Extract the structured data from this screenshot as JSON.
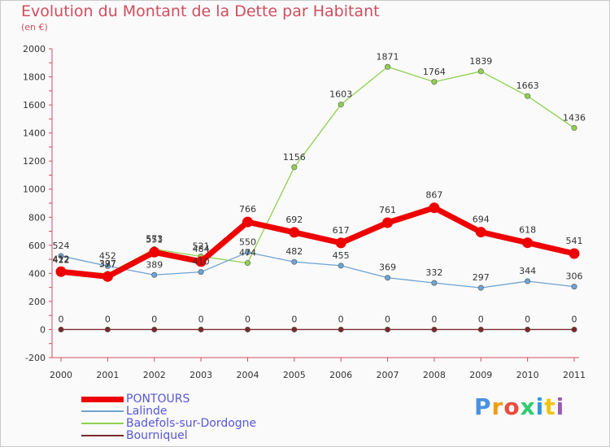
{
  "title": "Evolution du Montant de la Dette par Habitant",
  "subtitle": "(en €)",
  "brand": {
    "text": "Proxiti",
    "colors": [
      "#4a90e2",
      "#f39c12",
      "#e74c3c",
      "#2ecc71",
      "#3498db",
      "#f1c40f",
      "#9b59b6"
    ]
  },
  "chart_data": {
    "type": "line",
    "x": [
      "2000",
      "2001",
      "2002",
      "2003",
      "2004",
      "2005",
      "2006",
      "2007",
      "2008",
      "2009",
      "2010",
      "2011"
    ],
    "ylim": [
      -200,
      2000
    ],
    "yticks": [
      "-200",
      "0",
      "200",
      "400",
      "600",
      "800",
      "1000",
      "1200",
      "1400",
      "1600",
      "1800",
      "2000"
    ],
    "grid": false,
    "legend": "bottom-left",
    "series": [
      {
        "name": "Bourniquel",
        "color": "#7a2a2a",
        "values": [
          0,
          0,
          0,
          0,
          0,
          0,
          0,
          0,
          0,
          0,
          0,
          0
        ],
        "labels": [
          "0",
          "0",
          "0",
          "0",
          "0",
          "0",
          "0",
          "0",
          "0",
          "0",
          "0",
          "0"
        ]
      },
      {
        "name": "Badefols-sur-Dordogne",
        "color": "#8fd14f",
        "values": [
          422,
          397,
          573,
          521,
          474,
          1156,
          1603,
          1871,
          1764,
          1839,
          1663,
          1436
        ],
        "labels": [
          "422",
          "397",
          "573",
          "521",
          "474",
          "1156",
          "1603",
          "1871",
          "1764",
          "1839",
          "1663",
          "1436"
        ]
      },
      {
        "name": "Lalinde",
        "color": "#6ea3d3",
        "values": [
          524,
          452,
          389,
          410,
          550,
          482,
          455,
          369,
          332,
          297,
          344,
          306
        ],
        "labels": [
          "524",
          "452",
          "389",
          "410",
          "550",
          "482",
          "455",
          "369",
          "332",
          "297",
          "344",
          "306"
        ]
      },
      {
        "name": "PONTOURS",
        "color": "#ee0000",
        "values": [
          412,
          377,
          551,
          484,
          766,
          692,
          617,
          761,
          867,
          694,
          618,
          541
        ],
        "labels": [
          "412",
          "377",
          "551",
          "484",
          "766",
          "692",
          "617",
          "761",
          "867",
          "694",
          "618",
          "541"
        ]
      }
    ],
    "legend_order": [
      {
        "name": "PONTOURS",
        "color": "#ee0000",
        "thickness": 7
      },
      {
        "name": "Lalinde",
        "color": "#6ea3d3",
        "thickness": 2
      },
      {
        "name": "Badefols-sur-Dordogne",
        "color": "#8fd14f",
        "thickness": 2
      },
      {
        "name": "Bourniquel",
        "color": "#7a2a2a",
        "thickness": 2
      }
    ]
  }
}
